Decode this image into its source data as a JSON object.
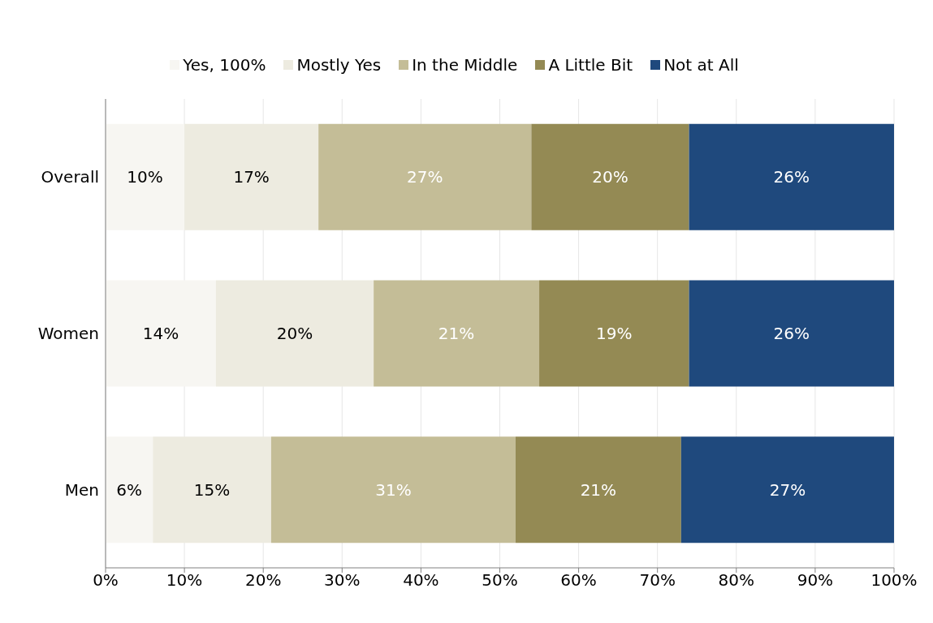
{
  "chart_data": {
    "type": "bar",
    "orientation": "horizontal",
    "stacked": true,
    "categories": [
      "Overall",
      "Women",
      "Men"
    ],
    "series": [
      {
        "name": "Yes, 100%",
        "color": "#f7f6f2",
        "values": [
          10,
          14,
          6
        ],
        "value_labels": [
          "10%",
          "14%",
          "6%"
        ]
      },
      {
        "name": "Mostly Yes",
        "color": "#edebe0",
        "values": [
          17,
          20,
          15
        ],
        "value_labels": [
          "17%",
          "20%",
          "15%"
        ]
      },
      {
        "name": "In the Middle",
        "color": "#c4bd97",
        "values": [
          27,
          21,
          31
        ],
        "value_labels": [
          "27%",
          "21%",
          "31%"
        ]
      },
      {
        "name": "A Little Bit",
        "color": "#948a54",
        "values": [
          20,
          19,
          21
        ],
        "value_labels": [
          "20%",
          "19%",
          "21%"
        ]
      },
      {
        "name": "Not at All",
        "color": "#1f497d",
        "values": [
          26,
          26,
          27
        ],
        "value_labels": [
          "26%",
          "26%",
          "27%"
        ]
      }
    ],
    "xlim": [
      0,
      100
    ],
    "xticks": [
      {
        "value": 0,
        "label": "0%"
      },
      {
        "value": 10,
        "label": "10%"
      },
      {
        "value": 20,
        "label": "20%"
      },
      {
        "value": 30,
        "label": "30%"
      },
      {
        "value": 40,
        "label": "40%"
      },
      {
        "value": 50,
        "label": "50%"
      },
      {
        "value": 60,
        "label": "60%"
      },
      {
        "value": 70,
        "label": "70%"
      },
      {
        "value": 80,
        "label": "80%"
      },
      {
        "value": 90,
        "label": "90%"
      },
      {
        "value": 100,
        "label": "100%"
      }
    ],
    "grid": "x",
    "legend": "top"
  }
}
